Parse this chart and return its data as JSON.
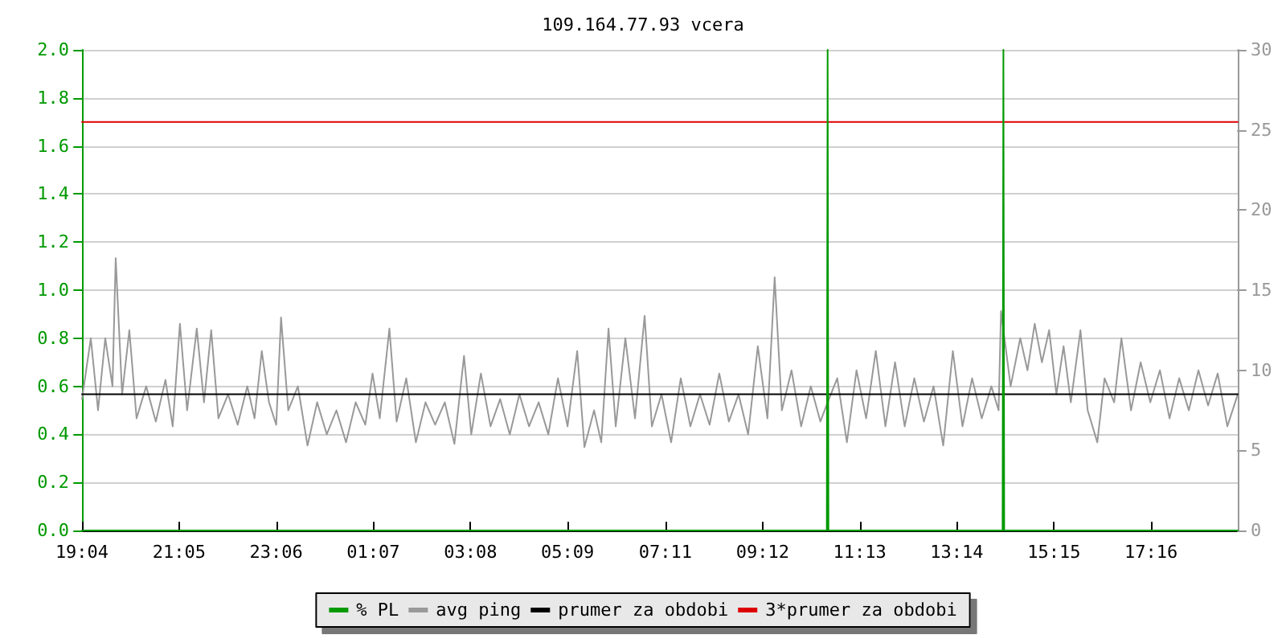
{
  "chart_data": {
    "type": "line",
    "title": "109.164.77.93 vcera",
    "marker": "none",
    "grid": "y",
    "legend": "bottom",
    "xlim": [
      "--01-01T19:04",
      "--01-02T19:04"
    ],
    "xticks": [
      {
        "value": "--01-01T19:04",
        "label": "19:04"
      },
      {
        "value": "--01-01T21:05",
        "label": "21:05"
      },
      {
        "value": "--01-01T23:06",
        "label": "23:06"
      },
      {
        "value": "--01-02T01:07",
        "label": "01:07"
      },
      {
        "value": "--01-02T03:08",
        "label": "03:08"
      },
      {
        "value": "--01-02T05:09",
        "label": "05:09"
      },
      {
        "value": "--01-02T07:11",
        "label": "07:11"
      },
      {
        "value": "--01-02T09:12",
        "label": "09:12"
      },
      {
        "value": "--01-02T11:13",
        "label": "11:13"
      },
      {
        "value": "--01-02T13:14",
        "label": "13:14"
      },
      {
        "value": "--01-02T15:15",
        "label": "15:15"
      },
      {
        "value": "--01-02T17:16",
        "label": "17:16"
      }
    ],
    "ylim": [
      0,
      2
    ],
    "yticks": [
      {
        "value": 0,
        "label": "0.0"
      },
      {
        "value": 0.2,
        "label": "0.2"
      },
      {
        "value": 0.4,
        "label": "0.4"
      },
      {
        "value": 0.6,
        "label": "0.6"
      },
      {
        "value": 0.8,
        "label": "0.8"
      },
      {
        "value": 1,
        "label": "1.0"
      },
      {
        "value": 1.2,
        "label": "1.2"
      },
      {
        "value": 1.4,
        "label": "1.4"
      },
      {
        "value": 1.6,
        "label": "1.6"
      },
      {
        "value": 1.8,
        "label": "1.8"
      },
      {
        "value": 2,
        "label": "2.0"
      }
    ],
    "y2lim": [
      0,
      30
    ],
    "y2ticks": [
      0,
      5,
      10,
      15,
      20,
      25,
      30
    ],
    "series": [
      {
        "name": "% PL",
        "color": "#009900",
        "x": [
          "--01-01T19:04",
          "--01-02T10:32",
          "--01-02T10:33",
          "--01-02T10:34",
          "--01-02T14:11",
          "--01-02T14:12",
          "--01-02T14:13",
          "--01-02T19:04"
        ],
        "values": [
          0,
          0,
          2,
          0,
          0,
          2,
          0,
          0
        ]
      },
      {
        "name": "avg ping",
        "color": "#999999",
        "axis": "y2",
        "x": [
          "--01-01T19:04",
          "--01-01T19:15",
          "--01-01T19:24",
          "--01-01T19:33",
          "--01-01T19:42",
          "--01-01T19:46",
          "--01-01T19:54",
          "--01-01T20:03",
          "--01-01T20:12",
          "--01-01T20:24",
          "--01-01T20:36",
          "--01-01T20:48",
          "--01-01T20:57",
          "--01-01T21:06",
          "--01-01T21:15",
          "--01-01T21:27",
          "--01-01T21:36",
          "--01-01T21:45",
          "--01-01T21:54",
          "--01-01T22:06",
          "--01-01T22:18",
          "--01-01T22:30",
          "--01-01T22:39",
          "--01-01T22:48",
          "--01-01T22:57",
          "--01-01T23:06",
          "--01-01T23:12",
          "--01-01T23:21",
          "--01-01T23:33",
          "--01-01T23:45",
          "--01-01T23:57",
          "--01-02T00:09",
          "--01-02T00:21",
          "--01-02T00:33",
          "--01-02T00:45",
          "--01-02T00:57",
          "--01-02T01:06",
          "--01-02T01:15",
          "--01-02T01:27",
          "--01-02T01:36",
          "--01-02T01:48",
          "--01-02T02:00",
          "--01-02T02:12",
          "--01-02T02:24",
          "--01-02T02:36",
          "--01-02T02:48",
          "--01-02T03:00",
          "--01-02T03:09",
          "--01-02T03:21",
          "--01-02T03:33",
          "--01-02T03:45",
          "--01-02T03:57",
          "--01-02T04:09",
          "--01-02T04:21",
          "--01-02T04:33",
          "--01-02T04:45",
          "--01-02T04:57",
          "--01-02T05:09",
          "--01-02T05:21",
          "--01-02T05:30",
          "--01-02T05:42",
          "--01-02T05:51",
          "--01-02T06:00",
          "--01-02T06:09",
          "--01-02T06:21",
          "--01-02T06:33",
          "--01-02T06:45",
          "--01-02T06:54",
          "--01-02T07:06",
          "--01-02T07:18",
          "--01-02T07:30",
          "--01-02T07:42",
          "--01-02T07:54",
          "--01-02T08:06",
          "--01-02T08:18",
          "--01-02T08:30",
          "--01-02T08:42",
          "--01-02T08:54",
          "--01-02T09:06",
          "--01-02T09:18",
          "--01-02T09:27",
          "--01-02T09:36",
          "--01-02T09:48",
          "--01-02T10:00",
          "--01-02T10:12",
          "--01-02T10:24",
          "--01-02T10:33",
          "--01-02T10:45",
          "--01-02T10:57",
          "--01-02T11:09",
          "--01-02T11:21",
          "--01-02T11:33",
          "--01-02T11:45",
          "--01-02T11:57",
          "--01-02T12:09",
          "--01-02T12:21",
          "--01-02T12:33",
          "--01-02T12:45",
          "--01-02T12:57",
          "--01-02T13:09",
          "--01-02T13:21",
          "--01-02T13:33",
          "--01-02T13:45",
          "--01-02T13:57",
          "--01-02T14:06",
          "--01-02T14:09",
          "--01-02T14:21",
          "--01-02T14:33",
          "--01-02T14:42",
          "--01-02T14:51",
          "--01-02T15:00",
          "--01-02T15:09",
          "--01-02T15:18",
          "--01-02T15:27",
          "--01-02T15:36",
          "--01-02T15:48",
          "--01-02T15:57",
          "--01-02T16:09",
          "--01-02T16:18",
          "--01-02T16:30",
          "--01-02T16:39",
          "--01-02T16:51",
          "--01-02T17:03",
          "--01-02T17:15",
          "--01-02T17:27",
          "--01-02T17:39",
          "--01-02T17:51",
          "--01-02T18:03",
          "--01-02T18:15",
          "--01-02T18:27",
          "--01-02T18:39",
          "--01-02T18:51",
          "--01-02T19:04"
        ],
        "values": [
          8.2,
          12.0,
          7.5,
          12.0,
          9.0,
          17.0,
          8.5,
          12.5,
          7.0,
          9.0,
          6.8,
          9.4,
          6.5,
          12.9,
          7.5,
          12.6,
          8.0,
          12.5,
          7.0,
          8.5,
          6.6,
          9.0,
          7.0,
          11.2,
          8.0,
          6.6,
          13.3,
          7.5,
          9.0,
          5.3,
          8.0,
          6.0,
          7.5,
          5.5,
          8.0,
          6.6,
          9.8,
          7.0,
          12.6,
          6.8,
          9.5,
          5.5,
          8.0,
          6.6,
          8.0,
          5.4,
          10.9,
          6.0,
          9.8,
          6.5,
          8.2,
          6.0,
          8.5,
          6.5,
          8.0,
          6.0,
          9.5,
          6.5,
          11.2,
          5.2,
          7.5,
          5.5,
          12.6,
          6.5,
          12.0,
          7.0,
          13.4,
          6.5,
          8.5,
          5.5,
          9.5,
          6.5,
          8.5,
          6.6,
          9.8,
          6.8,
          8.5,
          6.0,
          11.5,
          7.0,
          15.8,
          7.5,
          10.0,
          6.5,
          9.0,
          6.8,
          8.0,
          9.5,
          5.5,
          10.0,
          7.0,
          11.2,
          6.5,
          10.5,
          6.5,
          9.5,
          6.8,
          9.0,
          5.3,
          11.2,
          6.5,
          9.5,
          7.0,
          9.0,
          7.5,
          13.7,
          9.0,
          12.0,
          10.0,
          12.9,
          10.5,
          12.5,
          8.5,
          11.5,
          8.0,
          12.5,
          7.5,
          5.5,
          9.5,
          8.0,
          12.0,
          7.5,
          10.5,
          8.0,
          10.0,
          7.0,
          9.5,
          7.5,
          10.0,
          7.8,
          9.8,
          6.5,
          8.5
        ]
      },
      {
        "name": "prumer za obdobi",
        "color": "#000000",
        "axis": "y2",
        "x": [
          "--01-01T19:04",
          "--01-02T19:04"
        ],
        "values": [
          8.5,
          8.5
        ]
      },
      {
        "name": "3*prumer za obdobi",
        "color": "#dd0000",
        "axis": "y2",
        "x": [
          "--01-01T19:04",
          "--01-02T19:04"
        ],
        "values": [
          25.5,
          25.5
        ]
      }
    ]
  }
}
